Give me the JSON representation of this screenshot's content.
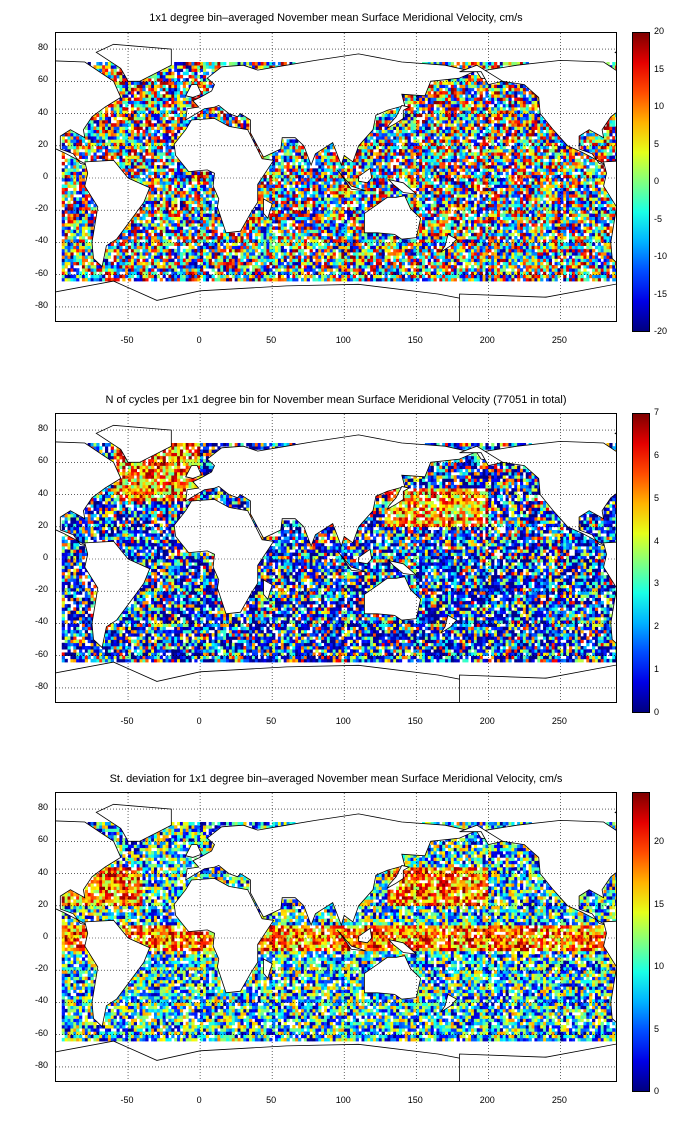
{
  "panels": [
    {
      "title": "1x1 degree bin–averaged November mean Surface Meridional Velocity, cm/s",
      "x_ticks": [
        "-50",
        "0",
        "50",
        "100",
        "150",
        "200",
        "250"
      ],
      "y_ticks": [
        "80",
        "60",
        "40",
        "20",
        "0",
        "-20",
        "-40",
        "-60",
        "-80"
      ],
      "colorbar_ticks": [
        "20",
        "15",
        "10",
        "5",
        "0",
        "-5",
        "-10",
        "-15",
        "-20"
      ],
      "colormap": "jet-diverging",
      "value_range": [
        -20,
        20
      ]
    },
    {
      "title": "N of cycles per 1x1 degree bin for November mean Surface Meridional Velocity (77051 in total)",
      "x_ticks": [
        "-50",
        "0",
        "50",
        "100",
        "150",
        "200",
        "250"
      ],
      "y_ticks": [
        "80",
        "60",
        "40",
        "20",
        "0",
        "-20",
        "-40",
        "-60",
        "-80"
      ],
      "colorbar_ticks": [
        "7",
        "6",
        "5",
        "4",
        "3",
        "2",
        "1",
        "0"
      ],
      "colormap": "jet",
      "value_range": [
        0,
        7
      ]
    },
    {
      "title": "St. deviation for 1x1 degree bin–averaged November mean Surface Meridional Velocity, cm/s",
      "x_ticks": [
        "-50",
        "0",
        "50",
        "100",
        "150",
        "200",
        "250"
      ],
      "y_ticks": [
        "80",
        "60",
        "40",
        "20",
        "0",
        "-20",
        "-40",
        "-60",
        "-80"
      ],
      "colorbar_ticks": [
        "20",
        "15",
        "10",
        "5",
        "0"
      ],
      "colormap": "jet",
      "value_range": [
        0,
        24
      ]
    }
  ],
  "map": {
    "lon_range": [
      -100,
      290
    ],
    "lat_range": [
      -90,
      90
    ],
    "grid": "dotted",
    "colors": {
      "jet_low": "#00008f",
      "jet_mid_low": "#00a0ff",
      "jet_mid": "#c8ff3c",
      "jet_mid_high": "#ff9a00",
      "jet_high": "#800000"
    }
  }
}
